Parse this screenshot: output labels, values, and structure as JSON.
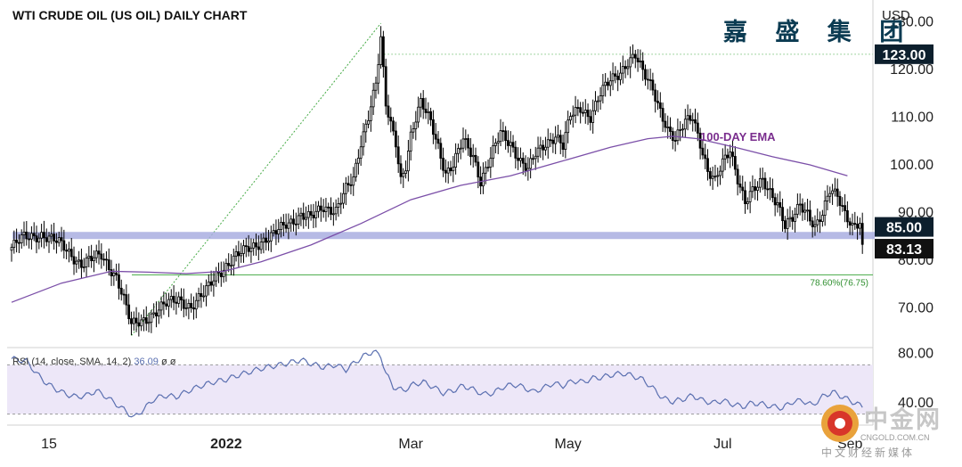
{
  "title": "WTI CRUDE OIL (US OIL) DAILY CHART",
  "brand": "嘉 盛 集 团",
  "currency": "USD",
  "price_panel": {
    "y_ticks": [
      "130.00",
      "120.00",
      "110.00",
      "100.00",
      "90.00",
      "80.00",
      "70.00"
    ],
    "y_tick_values": [
      130,
      120,
      110,
      100,
      90,
      80,
      70
    ],
    "ylim": [
      61.5,
      132.5
    ],
    "labels": {
      "high_level": "123.00",
      "support_level": "85.00",
      "last_price": "83.13"
    },
    "ema_label": "100-DAY EMA",
    "fib_label": "78.60%(76.75)"
  },
  "rsi_panel": {
    "legend": "RSI (14, close, SMA, 14, 2)",
    "legend_value": "36.09",
    "legend_na": "ø  ø",
    "y_ticks": [
      "80.00",
      "40.00"
    ],
    "y_tick_values": [
      80,
      40
    ],
    "ylim": [
      21,
      84
    ],
    "band": [
      70,
      30
    ]
  },
  "x_axis": {
    "ticks": [
      "15",
      "2022",
      "Mar",
      "May",
      "Jul",
      "Sep"
    ]
  },
  "watermark": {
    "text": "中金网",
    "url": "CNGOLD.COM.CN",
    "sub": "中文财经新媒体"
  },
  "colors": {
    "up": "#ffffff",
    "down": "#000000",
    "ema": "#7b4fa8",
    "support_band": "#a9aee0",
    "fib": "#44aa44",
    "dotted_level": "#44aa44",
    "rsi_line": "#5a6fb0",
    "rsi_band": "#ede7f8",
    "label_bg": "#0d1f2d",
    "brand": "#0b3b52"
  },
  "chart_data": {
    "type": "candlestick",
    "title": "WTI CRUDE OIL (US OIL) DAILY CHART",
    "currency": "USD",
    "x_ticks": [
      "15",
      "2022",
      "Mar",
      "May",
      "Jul",
      "Sep"
    ],
    "y_range": [
      61.5,
      132.5
    ],
    "support_level": 85.0,
    "high_level": 123.0,
    "last_price": 83.13,
    "fib_level": {
      "label": "78.60%(76.75)",
      "value": 76.75
    },
    "price_path": [
      [
        0,
        82.5
      ],
      [
        5,
        84.5
      ],
      [
        12,
        85.3
      ],
      [
        20,
        83.0
      ],
      [
        28,
        79.0
      ],
      [
        36,
        80.8
      ],
      [
        42,
        76.5
      ],
      [
        45,
        71.5
      ],
      [
        48,
        66.0
      ],
      [
        55,
        68.0
      ],
      [
        62,
        70.5
      ],
      [
        67,
        71.8
      ],
      [
        72,
        70.0
      ],
      [
        77,
        72.5
      ],
      [
        82,
        77.0
      ],
      [
        88,
        79.5
      ],
      [
        95,
        82.5
      ],
      [
        100,
        83.8
      ],
      [
        104,
        84.5
      ],
      [
        110,
        87.5
      ],
      [
        116,
        89.3
      ],
      [
        120,
        88.5
      ],
      [
        125,
        91.0
      ],
      [
        130,
        90.5
      ],
      [
        134,
        94.5
      ],
      [
        137,
        96.5
      ],
      [
        140,
        104.5
      ],
      [
        143,
        110.5
      ],
      [
        146,
        117.0
      ],
      [
        148,
        126.0
      ],
      [
        150,
        112.0
      ],
      [
        152,
        108.0
      ],
      [
        154,
        104.5
      ],
      [
        156,
        97.0
      ],
      [
        158,
        100.0
      ],
      [
        160,
        106.0
      ],
      [
        164,
        112.5
      ],
      [
        168,
        109.0
      ],
      [
        171,
        104.0
      ],
      [
        174,
        98.0
      ],
      [
        177,
        99.5
      ],
      [
        181,
        105.0
      ],
      [
        185,
        102.0
      ],
      [
        188,
        96.5
      ],
      [
        192,
        101.0
      ],
      [
        196,
        106.5
      ],
      [
        200,
        104.5
      ],
      [
        204,
        100.5
      ],
      [
        207,
        98.5
      ],
      [
        210,
        102.0
      ],
      [
        214,
        104.5
      ],
      [
        218,
        106.0
      ],
      [
        221,
        103.5
      ],
      [
        224,
        110.0
      ],
      [
        228,
        112.0
      ],
      [
        232,
        110.0
      ],
      [
        236,
        114.5
      ],
      [
        240,
        117.5
      ],
      [
        244,
        119.5
      ],
      [
        247,
        121.5
      ],
      [
        250,
        122.5
      ],
      [
        253,
        119.0
      ],
      [
        257,
        116.0
      ],
      [
        260,
        111.5
      ],
      [
        263,
        107.0
      ],
      [
        266,
        104.5
      ],
      [
        270,
        109.0
      ],
      [
        273,
        110.5
      ],
      [
        276,
        104.5
      ],
      [
        279,
        98.0
      ],
      [
        282,
        96.0
      ],
      [
        285,
        100.5
      ],
      [
        288,
        103.5
      ],
      [
        291,
        97.0
      ],
      [
        294,
        91.5
      ],
      [
        297,
        94.0
      ],
      [
        301,
        97.0
      ],
      [
        304,
        94.5
      ],
      [
        307,
        91.5
      ],
      [
        310,
        86.5
      ],
      [
        313,
        88.5
      ],
      [
        316,
        92.0
      ],
      [
        319,
        90.0
      ],
      [
        322,
        86.5
      ],
      [
        325,
        89.0
      ],
      [
        328,
        94.5
      ],
      [
        331,
        94.0
      ],
      [
        334,
        90.0
      ],
      [
        337,
        86.5
      ],
      [
        340,
        87.0
      ],
      [
        341,
        83.13
      ]
    ],
    "ema_100": [
      [
        0,
        71.0
      ],
      [
        20,
        75.0
      ],
      [
        40,
        77.5
      ],
      [
        55,
        77.3
      ],
      [
        70,
        77.0
      ],
      [
        85,
        77.5
      ],
      [
        100,
        79.5
      ],
      [
        120,
        83.0
      ],
      [
        140,
        87.5
      ],
      [
        160,
        92.5
      ],
      [
        180,
        95.5
      ],
      [
        200,
        97.5
      ],
      [
        220,
        100.5
      ],
      [
        240,
        103.5
      ],
      [
        255,
        105.3
      ],
      [
        265,
        105.8
      ],
      [
        275,
        105.3
      ],
      [
        290,
        103.5
      ],
      [
        305,
        101.5
      ],
      [
        320,
        99.8
      ],
      [
        335,
        97.5
      ]
    ],
    "rsi_14": [
      [
        0,
        75
      ],
      [
        6,
        73
      ],
      [
        10,
        63
      ],
      [
        14,
        55
      ],
      [
        18,
        50
      ],
      [
        22,
        46
      ],
      [
        26,
        44
      ],
      [
        30,
        45
      ],
      [
        34,
        49
      ],
      [
        38,
        44
      ],
      [
        42,
        38
      ],
      [
        46,
        32
      ],
      [
        49,
        27
      ],
      [
        53,
        34
      ],
      [
        57,
        42
      ],
      [
        61,
        45
      ],
      [
        66,
        44
      ],
      [
        71,
        49
      ],
      [
        76,
        53
      ],
      [
        81,
        56
      ],
      [
        86,
        58
      ],
      [
        90,
        61
      ],
      [
        95,
        64
      ],
      [
        100,
        67
      ],
      [
        105,
        69
      ],
      [
        110,
        71
      ],
      [
        116,
        74
      ],
      [
        120,
        71
      ],
      [
        125,
        68
      ],
      [
        130,
        70
      ],
      [
        134,
        66
      ],
      [
        137,
        71
      ],
      [
        141,
        77
      ],
      [
        145,
        81
      ],
      [
        148,
        77
      ],
      [
        150,
        63
      ],
      [
        153,
        52
      ],
      [
        157,
        49
      ],
      [
        161,
        54
      ],
      [
        165,
        56
      ],
      [
        169,
        52
      ],
      [
        173,
        47
      ],
      [
        177,
        49
      ],
      [
        181,
        53
      ],
      [
        185,
        50
      ],
      [
        189,
        46
      ],
      [
        193,
        47
      ],
      [
        197,
        52
      ],
      [
        201,
        54
      ],
      [
        205,
        52
      ],
      [
        209,
        48
      ],
      [
        213,
        51
      ],
      [
        217,
        55
      ],
      [
        221,
        53
      ],
      [
        225,
        57
      ],
      [
        229,
        56
      ],
      [
        233,
        59
      ],
      [
        237,
        60
      ],
      [
        241,
        62
      ],
      [
        245,
        63
      ],
      [
        249,
        61
      ],
      [
        253,
        58
      ],
      [
        257,
        51
      ],
      [
        261,
        43
      ],
      [
        265,
        40
      ],
      [
        269,
        42
      ],
      [
        273,
        45
      ],
      [
        277,
        41
      ],
      [
        281,
        39
      ],
      [
        285,
        41
      ],
      [
        289,
        38
      ],
      [
        293,
        36
      ],
      [
        297,
        39
      ],
      [
        301,
        38
      ],
      [
        305,
        36
      ],
      [
        309,
        35
      ],
      [
        313,
        40
      ],
      [
        317,
        41
      ],
      [
        321,
        37
      ],
      [
        325,
        44
      ],
      [
        329,
        48
      ],
      [
        333,
        44
      ],
      [
        337,
        40
      ],
      [
        341,
        36.09
      ]
    ]
  }
}
